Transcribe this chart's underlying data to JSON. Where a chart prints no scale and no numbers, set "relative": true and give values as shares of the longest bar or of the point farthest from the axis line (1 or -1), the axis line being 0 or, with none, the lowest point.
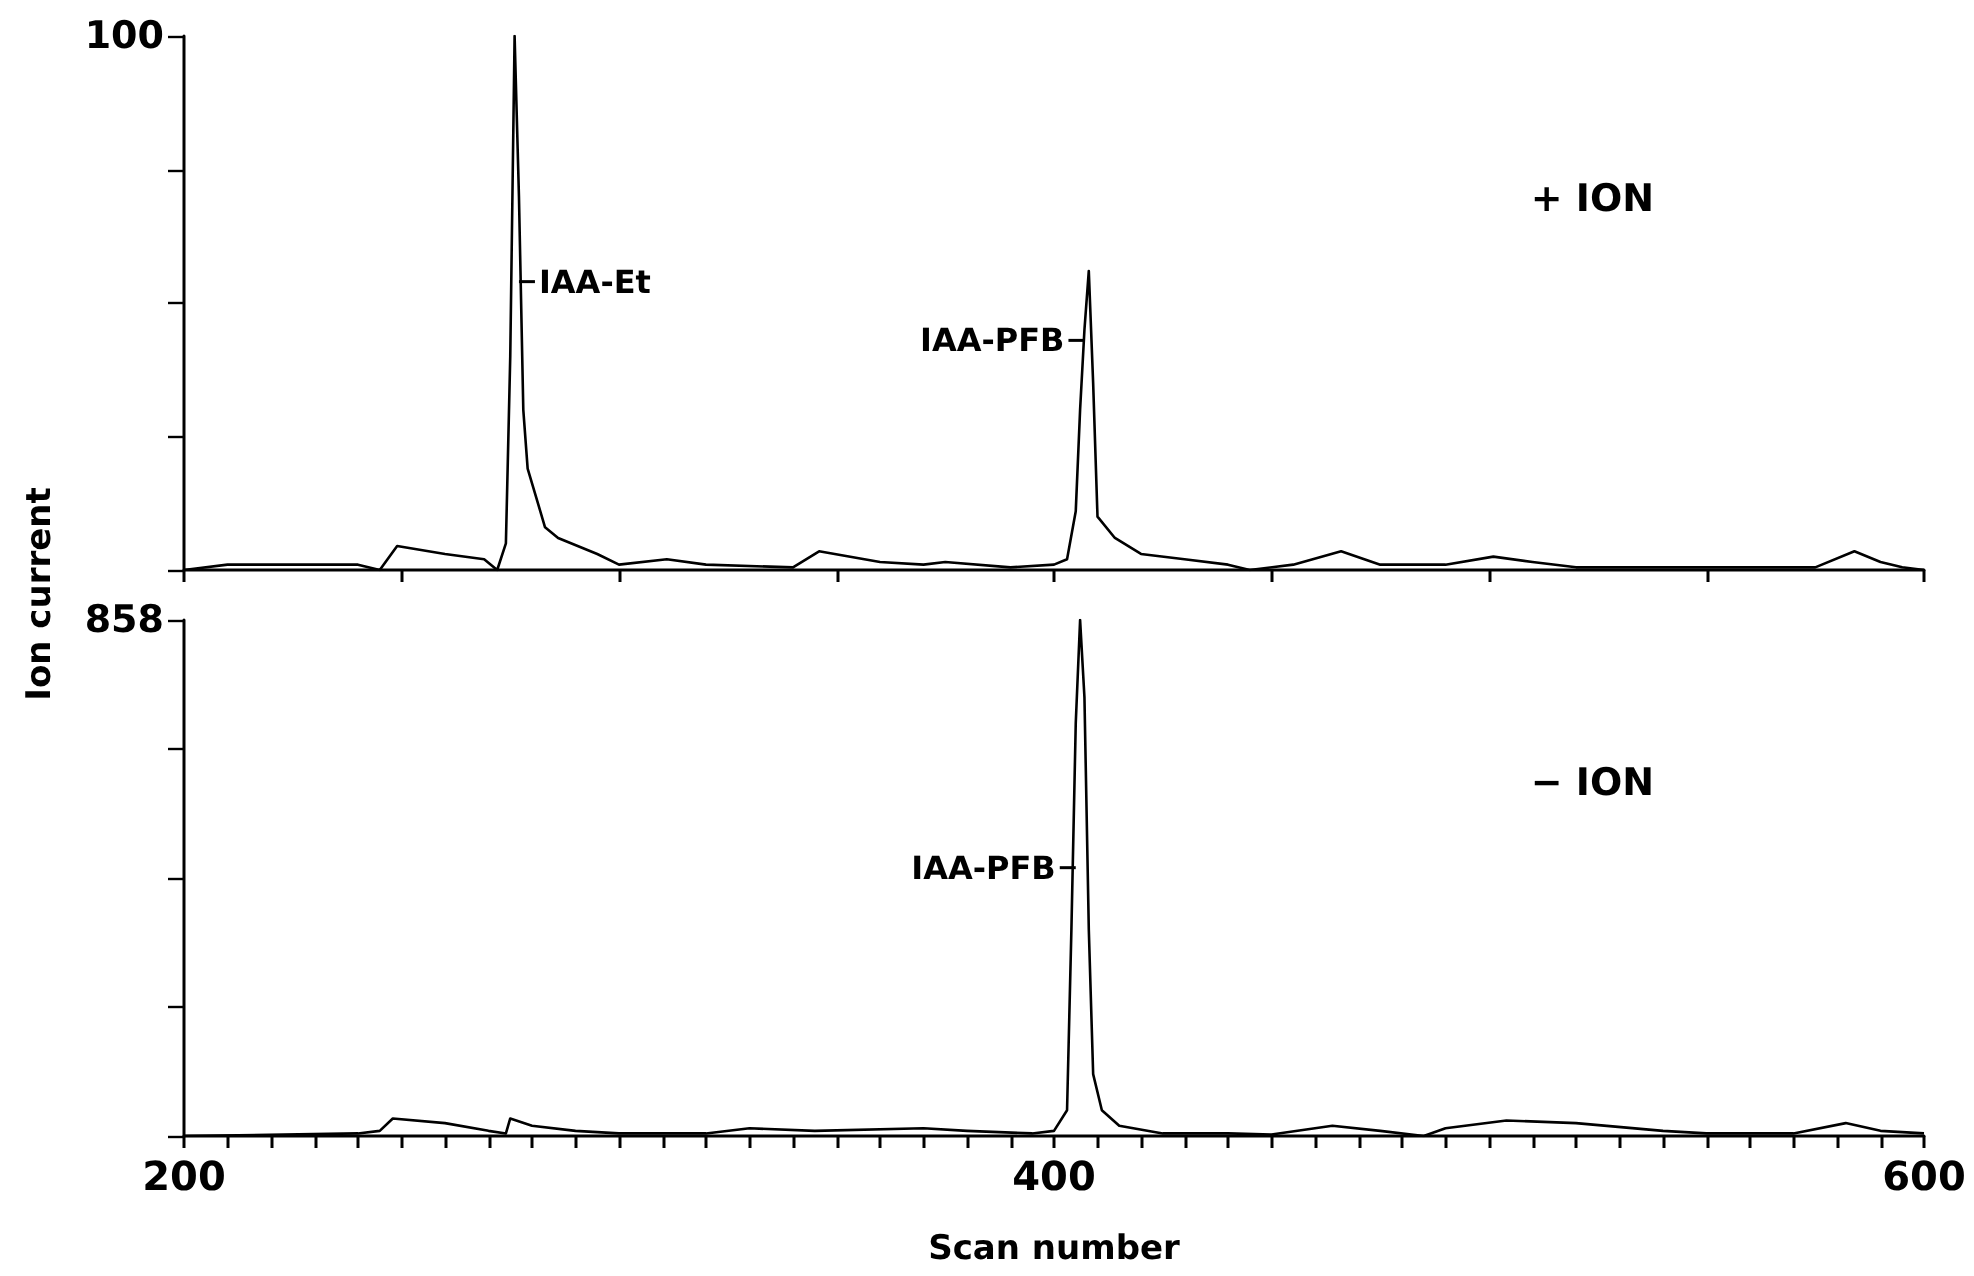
{
  "chart_data": [
    {
      "type": "line",
      "relative": true,
      "xlim": [
        200,
        600
      ],
      "xticks": [
        {
          "value": 200,
          "label": null
        },
        {
          "value": 250,
          "label": null
        },
        {
          "value": 300,
          "label": null
        },
        {
          "value": 350,
          "label": null
        },
        {
          "value": 400,
          "label": null
        },
        {
          "value": 450,
          "label": null
        },
        {
          "value": 500,
          "label": null
        },
        {
          "value": 550,
          "label": null
        },
        {
          "value": 600,
          "label": null
        }
      ],
      "tick_labels": false,
      "marker": "none",
      "line_style": "solid",
      "grid": false,
      "annotations": [
        "100",
        "+ ION",
        {
          "text": "IAA-Et",
          "x": 277,
          "y": 0.54
        },
        {
          "text": "IAA-PFB",
          "x": 407,
          "y": 0.43
        }
      ],
      "series": [
        {
          "color": "#000000",
          "x": [
            200,
            210,
            230,
            240,
            245,
            249,
            260,
            269,
            272,
            274,
            275,
            276,
            277,
            278,
            279,
            283,
            286,
            295,
            300,
            311,
            320,
            340,
            346,
            360,
            370,
            375,
            390,
            400,
            403,
            405,
            406,
            407,
            408,
            409,
            410,
            414,
            420,
            430,
            440,
            445,
            455,
            466,
            475,
            490,
            501,
            510,
            520,
            540,
            560,
            575,
            584,
            590,
            595,
            600
          ],
          "values": [
            0,
            0.01,
            0.01,
            0.01,
            0,
            0.045,
            0.03,
            0.02,
            0,
            0.05,
            0.4,
            1,
            0.7,
            0.3,
            0.19,
            0.08,
            0.06,
            0.03,
            0.01,
            0.02,
            0.01,
            0.005,
            0.035,
            0.015,
            0.01,
            0.015,
            0.005,
            0.01,
            0.02,
            0.11,
            0.3,
            0.45,
            0.56,
            0.35,
            0.1,
            0.06,
            0.03,
            0.02,
            0.01,
            0,
            0.01,
            0.035,
            0.01,
            0.01,
            0.025,
            0.015,
            0.005,
            0.005,
            0.005,
            0.005,
            0.035,
            0.015,
            0.005,
            0
          ]
        }
      ]
    },
    {
      "type": "line",
      "relative": true,
      "xlim": [
        200,
        600
      ],
      "xlabel": "Scan number",
      "ylabel": "Ion current",
      "xticks": [
        200,
        {
          "value": 210,
          "label": null
        },
        {
          "value": 220,
          "label": null
        },
        {
          "value": 230,
          "label": null
        },
        {
          "value": 240,
          "label": null
        },
        {
          "value": 250,
          "label": null
        },
        {
          "value": 260,
          "label": null
        },
        {
          "value": 270,
          "label": null
        },
        {
          "value": 280,
          "label": null
        },
        {
          "value": 290,
          "label": null
        },
        {
          "value": 300,
          "label": null
        },
        {
          "value": 310,
          "label": null
        },
        {
          "value": 320,
          "label": null
        },
        {
          "value": 330,
          "label": null
        },
        {
          "value": 340,
          "label": null
        },
        {
          "value": 350,
          "label": null
        },
        {
          "value": 360,
          "label": null
        },
        {
          "value": 370,
          "label": null
        },
        {
          "value": 380,
          "label": null
        },
        {
          "value": 390,
          "label": null
        },
        400,
        {
          "value": 410,
          "label": null
        },
        {
          "value": 420,
          "label": null
        },
        {
          "value": 430,
          "label": null
        },
        {
          "value": 440,
          "label": null
        },
        {
          "value": 450,
          "label": null
        },
        {
          "value": 460,
          "label": null
        },
        {
          "value": 470,
          "label": null
        },
        {
          "value": 480,
          "label": null
        },
        {
          "value": 490,
          "label": null
        },
        {
          "value": 500,
          "label": null
        },
        {
          "value": 510,
          "label": null
        },
        {
          "value": 520,
          "label": null
        },
        {
          "value": 530,
          "label": null
        },
        {
          "value": 540,
          "label": null
        },
        {
          "value": 550,
          "label": null
        },
        {
          "value": 560,
          "label": null
        },
        {
          "value": 570,
          "label": null
        },
        {
          "value": 580,
          "label": null
        },
        {
          "value": 590,
          "label": null
        },
        600
      ],
      "tick_labels": "x",
      "marker": "none",
      "line_style": "solid",
      "grid": false,
      "annotations": [
        "858",
        "− ION",
        {
          "text": "IAA-PFB",
          "x": 405,
          "y": 0.52
        }
      ],
      "series": [
        {
          "color": "#000000",
          "x": [
            200,
            240,
            245,
            248,
            260,
            270,
            274,
            275,
            280,
            290,
            300,
            320,
            330,
            345,
            370,
            380,
            395,
            400,
            403,
            404,
            405,
            406,
            407,
            408,
            409,
            411,
            415,
            425,
            440,
            450,
            460,
            464,
            475,
            485,
            490,
            504,
            520,
            540,
            550,
            570,
            582,
            590,
            600
          ],
          "values": [
            0,
            0.005,
            0.01,
            0.034,
            0.025,
            0.01,
            0.005,
            0.034,
            0.02,
            0.01,
            0.005,
            0.005,
            0.015,
            0.01,
            0.015,
            0.01,
            0.005,
            0.01,
            0.05,
            0.4,
            0.8,
            1,
            0.85,
            0.4,
            0.12,
            0.05,
            0.02,
            0.005,
            0.005,
            0.003,
            0.015,
            0.02,
            0.01,
            0,
            0.015,
            0.03,
            0.025,
            0.01,
            0.005,
            0.005,
            0.025,
            0.01,
            0.005
          ]
        }
      ]
    }
  ]
}
